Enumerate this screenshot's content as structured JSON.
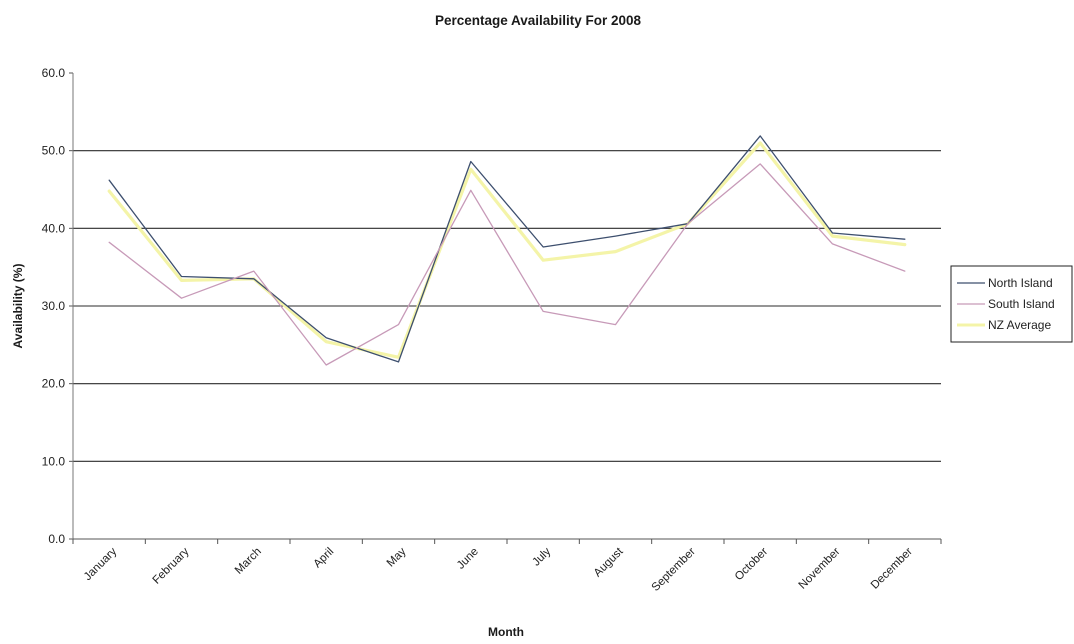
{
  "chart_data": {
    "type": "line",
    "title": "Percentage Availability For 2008",
    "xlabel": "Month",
    "ylabel": "Availability (%)",
    "ylim": [
      0,
      60
    ],
    "yticks": [
      "0.0",
      "10.0",
      "20.0",
      "30.0",
      "40.0",
      "50.0",
      "60.0"
    ],
    "grid": true,
    "legend_position": "right",
    "categories": [
      "January",
      "February",
      "March",
      "April",
      "May",
      "June",
      "July",
      "August",
      "September",
      "October",
      "November",
      "December"
    ],
    "series": [
      {
        "name": "North Island",
        "color": "#3d4f6e",
        "values": [
          46.2,
          33.8,
          33.5,
          25.9,
          22.8,
          48.6,
          37.6,
          39.0,
          40.6,
          51.9,
          39.4,
          38.6
        ]
      },
      {
        "name": "South Island",
        "color": "#c79ab8",
        "values": [
          38.2,
          31.0,
          34.5,
          22.4,
          27.6,
          44.9,
          29.3,
          27.6,
          40.6,
          48.3,
          38.0,
          34.5
        ]
      },
      {
        "name": "NZ Average",
        "color": "#f4f4a8",
        "values": [
          44.8,
          33.3,
          33.5,
          25.4,
          23.4,
          47.6,
          35.9,
          37.0,
          40.6,
          51.0,
          39.0,
          37.9
        ]
      }
    ]
  }
}
